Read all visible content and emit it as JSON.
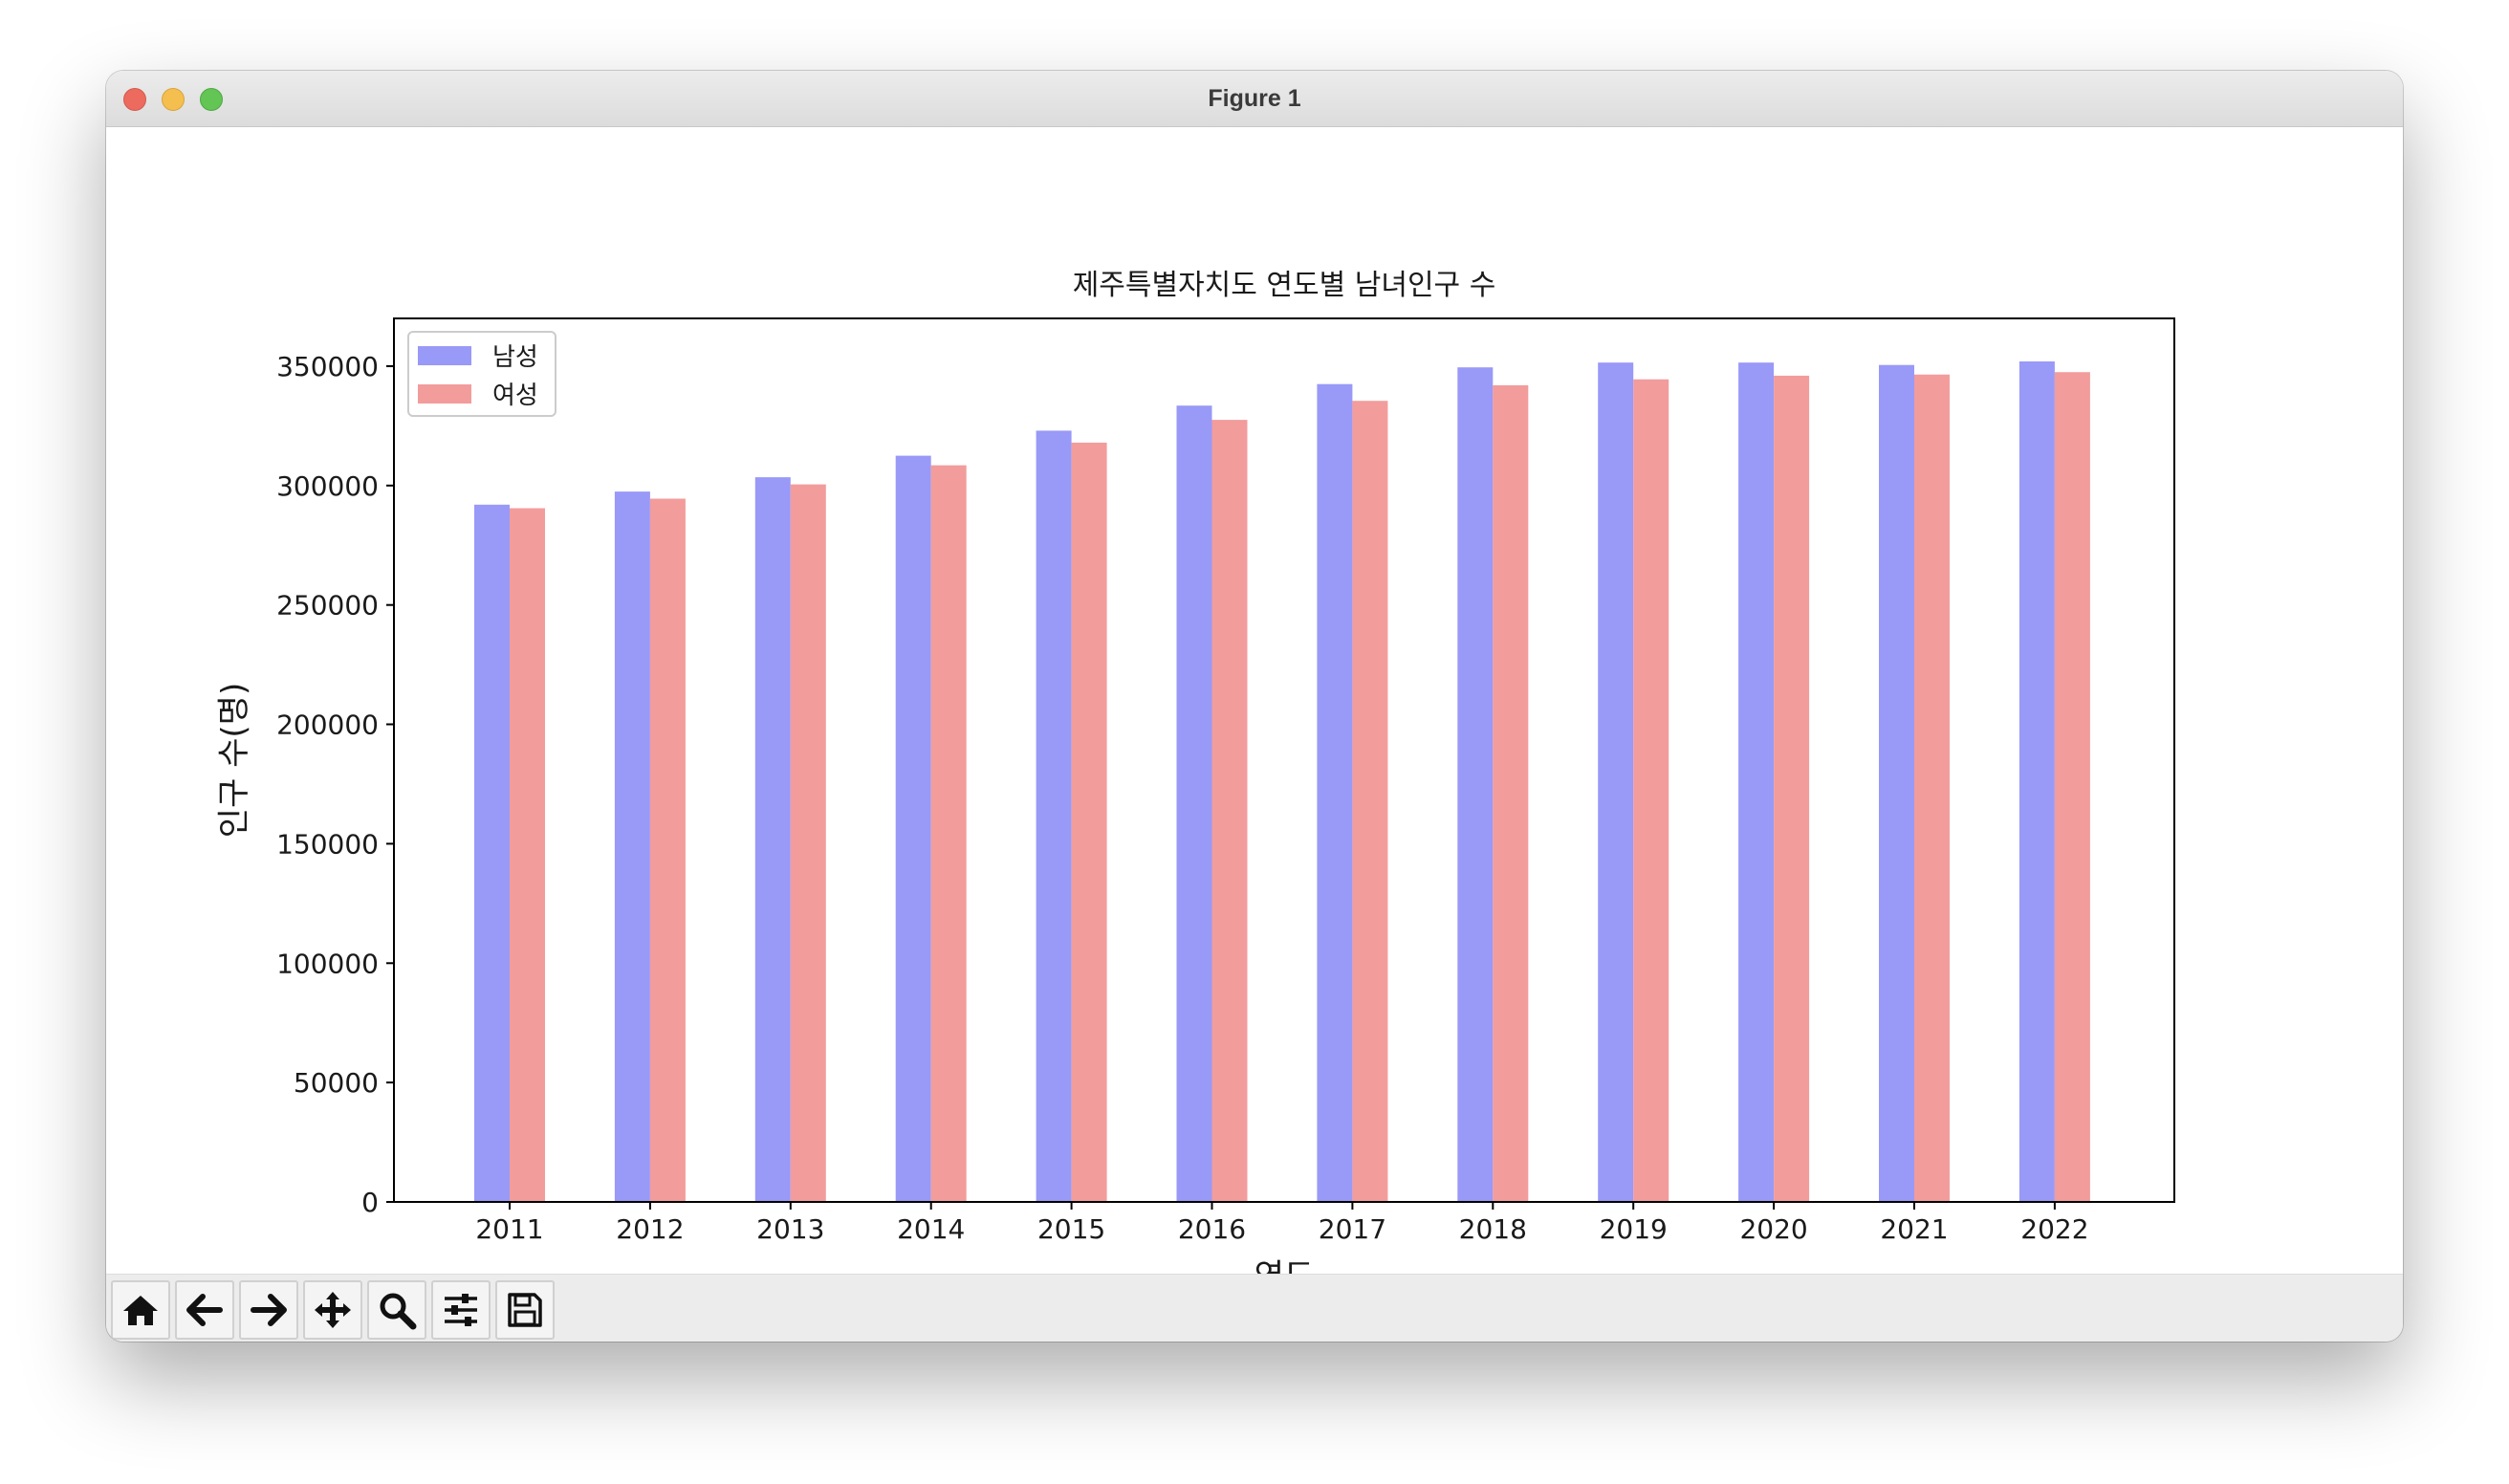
{
  "window": {
    "title": "Figure 1"
  },
  "toolbar": {
    "buttons": [
      {
        "name": "home-icon"
      },
      {
        "name": "back-arrow-icon"
      },
      {
        "name": "forward-arrow-icon"
      },
      {
        "name": "pan-move-icon"
      },
      {
        "name": "zoom-magnifier-icon"
      },
      {
        "name": "configure-subplots-icon"
      },
      {
        "name": "save-floppy-icon"
      }
    ]
  },
  "colors": {
    "male": "#9999f7",
    "female": "#f29c9c"
  },
  "chart_data": {
    "type": "bar",
    "title": "제주특별자치도 연도별 남녀인구 수",
    "xlabel": "연도",
    "ylabel": "인구 수(명)",
    "categories": [
      "2011",
      "2012",
      "2013",
      "2014",
      "2015",
      "2016",
      "2017",
      "2018",
      "2019",
      "2020",
      "2021",
      "2022"
    ],
    "series": [
      {
        "name": "남성",
        "values": [
          292000,
          297500,
          303500,
          312500,
          323000,
          333500,
          342500,
          349500,
          351500,
          351500,
          350500,
          352000
        ]
      },
      {
        "name": "여성",
        "values": [
          290500,
          294500,
          300500,
          308500,
          318000,
          327500,
          335500,
          342000,
          344500,
          346000,
          346500,
          347500
        ]
      }
    ],
    "ylim": [
      0,
      370000
    ],
    "yticks": [
      0,
      50000,
      100000,
      150000,
      200000,
      250000,
      300000,
      350000
    ],
    "ytick_labels": [
      "0",
      "50000",
      "100000",
      "150000",
      "200000",
      "250000",
      "300000",
      "350000"
    ],
    "legend_position": "upper-left",
    "grid": false
  }
}
